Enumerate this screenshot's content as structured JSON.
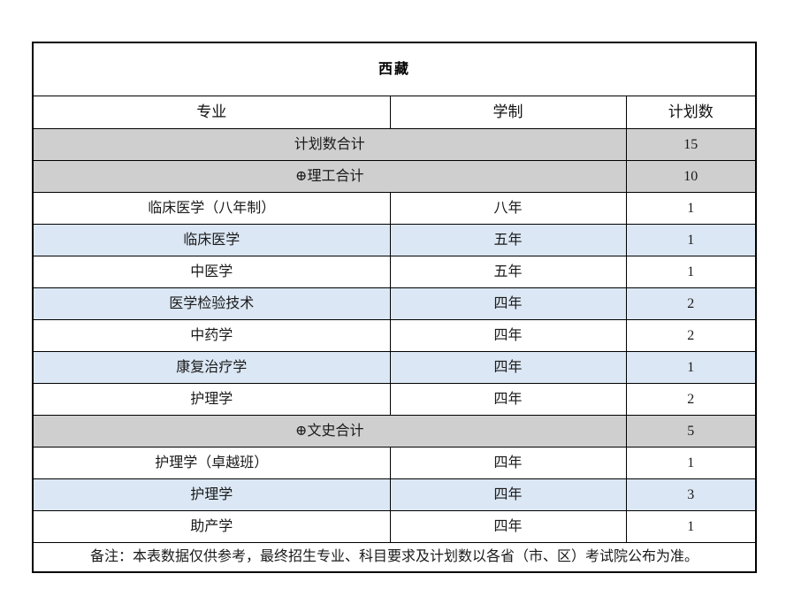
{
  "table": {
    "title": "西藏",
    "columns": [
      "专业",
      "学制",
      "计划数"
    ],
    "rows": [
      {
        "type": "summary",
        "label": "计划数合计",
        "plan": "15"
      },
      {
        "type": "summary",
        "label": "⊕理工合计",
        "plan": "10"
      },
      {
        "type": "data",
        "shade": "white",
        "major": "临床医学（八年制）",
        "duration": "八年",
        "plan": "1"
      },
      {
        "type": "data",
        "shade": "blue",
        "major": "临床医学",
        "duration": "五年",
        "plan": "1"
      },
      {
        "type": "data",
        "shade": "white",
        "major": "中医学",
        "duration": "五年",
        "plan": "1"
      },
      {
        "type": "data",
        "shade": "blue",
        "major": "医学检验技术",
        "duration": "四年",
        "plan": "2"
      },
      {
        "type": "data",
        "shade": "white",
        "major": "中药学",
        "duration": "四年",
        "plan": "2"
      },
      {
        "type": "data",
        "shade": "blue",
        "major": "康复治疗学",
        "duration": "四年",
        "plan": "1"
      },
      {
        "type": "data",
        "shade": "white",
        "major": "护理学",
        "duration": "四年",
        "plan": "2"
      },
      {
        "type": "summary",
        "label": "⊕文史合计",
        "plan": "5"
      },
      {
        "type": "data",
        "shade": "white",
        "major": "护理学（卓越班）",
        "duration": "四年",
        "plan": "1"
      },
      {
        "type": "data",
        "shade": "blue",
        "major": "护理学",
        "duration": "四年",
        "plan": "3"
      },
      {
        "type": "data",
        "shade": "white",
        "major": "助产学",
        "duration": "四年",
        "plan": "1"
      }
    ],
    "footer": "备注：本表数据仅供参考，最终招生专业、科目要求及计划数以各省（市、区）考试院公布为准。",
    "colors": {
      "summary_row_bg": "#cfcfcf",
      "alt_row_bg": "#dbe7f4",
      "border": "#000000",
      "title_text": "#000000"
    }
  }
}
